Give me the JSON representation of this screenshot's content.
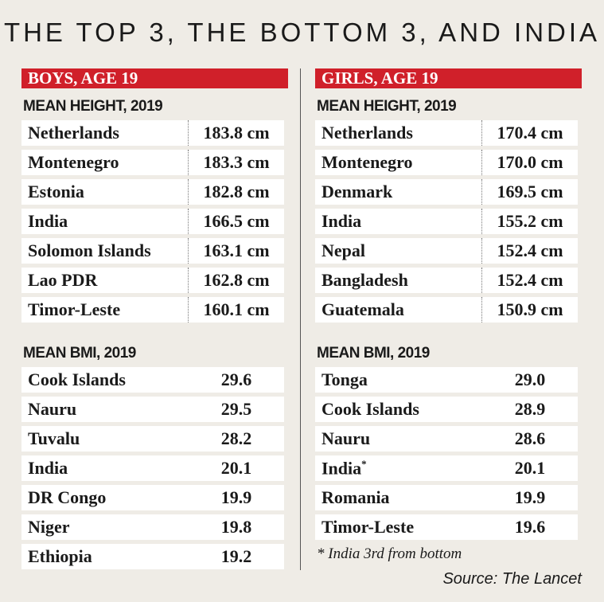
{
  "title": "THE TOP 3, THE BOTTOM 3, AND INDIA",
  "boys": {
    "banner": "BOYS, AGE 19",
    "height_heading": "MEAN HEIGHT, 2019",
    "height_rows": [
      {
        "name": "Netherlands",
        "value": "183.8 cm"
      },
      {
        "name": "Montenegro",
        "value": "183.3 cm"
      },
      {
        "name": "Estonia",
        "value": "182.8 cm"
      },
      {
        "name": "India",
        "value": "166.5 cm"
      },
      {
        "name": "Solomon Islands",
        "value": "163.1 cm"
      },
      {
        "name": "Lao PDR",
        "value": "162.8 cm"
      },
      {
        "name": "Timor-Leste",
        "value": "160.1 cm"
      }
    ],
    "bmi_heading": "MEAN BMI, 2019",
    "bmi_rows": [
      {
        "name": "Cook Islands",
        "value": "29.6"
      },
      {
        "name": "Nauru",
        "value": "29.5"
      },
      {
        "name": "Tuvalu",
        "value": "28.2"
      },
      {
        "name": "India",
        "value": "20.1"
      },
      {
        "name": "DR Congo",
        "value": "19.9"
      },
      {
        "name": "Niger",
        "value": "19.8"
      },
      {
        "name": "Ethiopia",
        "value": "19.2"
      }
    ]
  },
  "girls": {
    "banner": "GIRLS, AGE 19",
    "height_heading": "MEAN HEIGHT, 2019",
    "height_rows": [
      {
        "name": "Netherlands",
        "value": "170.4 cm"
      },
      {
        "name": "Montenegro",
        "value": "170.0 cm"
      },
      {
        "name": "Denmark",
        "value": "169.5 cm"
      },
      {
        "name": "India",
        "value": "155.2 cm"
      },
      {
        "name": "Nepal",
        "value": "152.4 cm"
      },
      {
        "name": "Bangladesh",
        "value": "152.4 cm"
      },
      {
        "name": "Guatemala",
        "value": "150.9 cm"
      }
    ],
    "bmi_heading": "MEAN BMI, 2019",
    "bmi_rows": [
      {
        "name": "Tonga",
        "value": "29.0"
      },
      {
        "name": "Cook Islands",
        "value": "28.9"
      },
      {
        "name": "Nauru",
        "value": "28.6"
      },
      {
        "name": "India",
        "value": "20.1",
        "marker": "*"
      },
      {
        "name": "Romania",
        "value": "19.9"
      },
      {
        "name": "Timor-Leste",
        "value": "19.6"
      }
    ]
  },
  "footnote": "* India 3rd from bottom",
  "source": "Source: The Lancet"
}
